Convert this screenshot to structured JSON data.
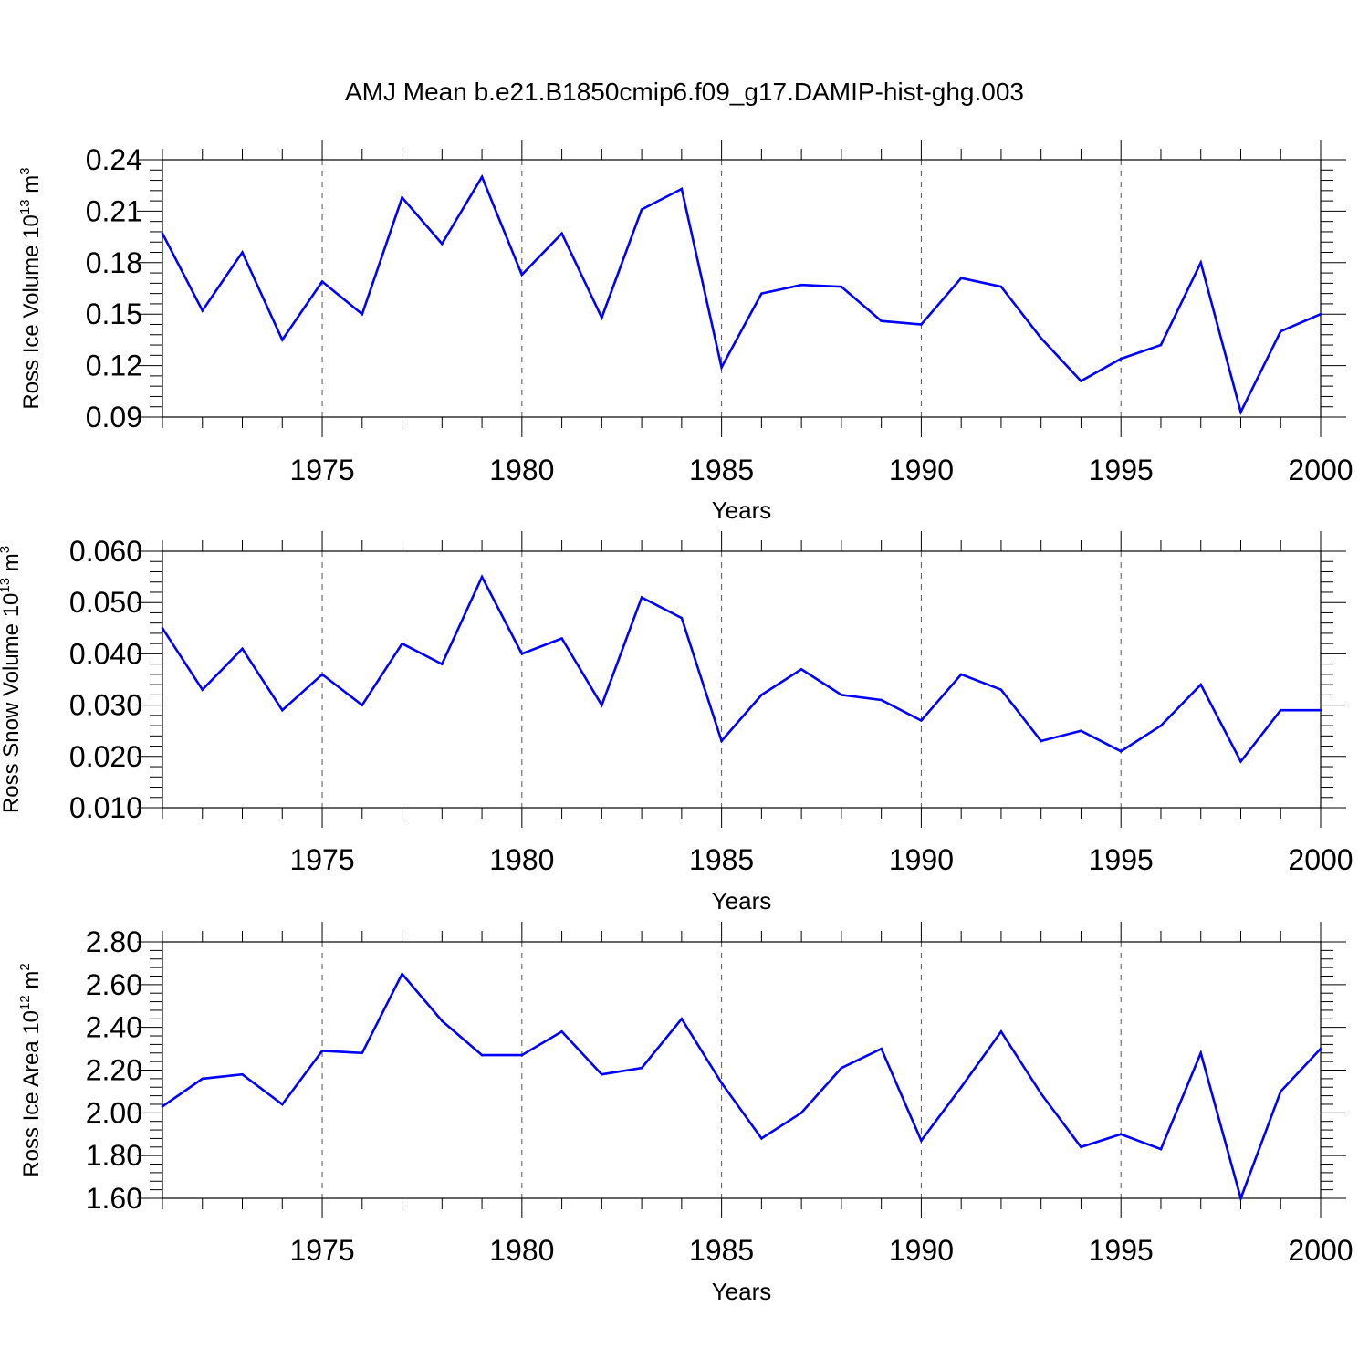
{
  "colors": {
    "series": "#0000ff",
    "axes": "#000000",
    "grid": "#555555"
  },
  "chart_data": [
    {
      "type": "line",
      "title": "AMJ Mean b.e21.B1850cmip6.f09_g17.DAMIP-hist-ghg.003",
      "xlabel": "Years",
      "ylabel": {
        "text": "Ross Ice Volume 10",
        "sup": "13",
        "unit": " m",
        "unit_sup": "3"
      },
      "xlim": [
        1971,
        2000
      ],
      "ylim": [
        0.09,
        0.24
      ],
      "yticks": [
        "0.09",
        "0.12",
        "0.15",
        "0.18",
        "0.21",
        "0.24"
      ],
      "xticks": [
        "1975",
        "1980",
        "1985",
        "1990",
        "1995",
        "2000"
      ],
      "grid": "vertical dashed at major x ticks",
      "x": [
        1971,
        1972,
        1973,
        1974,
        1975,
        1976,
        1977,
        1978,
        1979,
        1980,
        1981,
        1982,
        1983,
        1984,
        1985,
        1986,
        1987,
        1988,
        1989,
        1990,
        1991,
        1992,
        1993,
        1994,
        1995,
        1996,
        1997,
        1998,
        1999,
        2000
      ],
      "values": [
        0.197,
        0.152,
        0.186,
        0.135,
        0.169,
        0.15,
        0.218,
        0.191,
        0.23,
        0.173,
        0.197,
        0.148,
        0.211,
        0.223,
        0.119,
        0.162,
        0.167,
        0.166,
        0.146,
        0.144,
        0.171,
        0.166,
        0.136,
        0.111,
        0.124,
        0.132,
        0.18,
        0.093,
        0.14,
        0.15
      ]
    },
    {
      "type": "line",
      "xlabel": "Years",
      "ylabel": {
        "text": "Ross Snow Volume 10",
        "sup": "13",
        "unit": " m",
        "unit_sup": "3"
      },
      "xlim": [
        1971,
        2000
      ],
      "ylim": [
        0.01,
        0.06
      ],
      "yticks": [
        "0.010",
        "0.020",
        "0.030",
        "0.040",
        "0.050",
        "0.060"
      ],
      "xticks": [
        "1975",
        "1980",
        "1985",
        "1990",
        "1995",
        "2000"
      ],
      "grid": "vertical dashed at major x ticks",
      "x": [
        1971,
        1972,
        1973,
        1974,
        1975,
        1976,
        1977,
        1978,
        1979,
        1980,
        1981,
        1982,
        1983,
        1984,
        1985,
        1986,
        1987,
        1988,
        1989,
        1990,
        1991,
        1992,
        1993,
        1994,
        1995,
        1996,
        1997,
        1998,
        1999,
        2000
      ],
      "values": [
        0.045,
        0.033,
        0.041,
        0.029,
        0.036,
        0.03,
        0.042,
        0.038,
        0.055,
        0.04,
        0.043,
        0.03,
        0.051,
        0.047,
        0.023,
        0.032,
        0.037,
        0.032,
        0.031,
        0.027,
        0.036,
        0.033,
        0.023,
        0.025,
        0.021,
        0.026,
        0.034,
        0.019,
        0.029,
        0.029
      ]
    },
    {
      "type": "line",
      "xlabel": "Years",
      "ylabel": {
        "text": "Ross Ice Area 10",
        "sup": "12",
        "unit": " m",
        "unit_sup": "2"
      },
      "xlim": [
        1971,
        2000
      ],
      "ylim": [
        1.6,
        2.8
      ],
      "yticks": [
        "1.60",
        "1.80",
        "2.00",
        "2.20",
        "2.40",
        "2.60",
        "2.80"
      ],
      "xticks": [
        "1975",
        "1980",
        "1985",
        "1990",
        "1995",
        "2000"
      ],
      "grid": "vertical dashed at major x ticks",
      "x": [
        1971,
        1972,
        1973,
        1974,
        1975,
        1976,
        1977,
        1978,
        1979,
        1980,
        1981,
        1982,
        1983,
        1984,
        1985,
        1986,
        1987,
        1988,
        1989,
        1990,
        1991,
        1992,
        1993,
        1994,
        1995,
        1996,
        1997,
        1998,
        1999,
        2000
      ],
      "values": [
        2.03,
        2.16,
        2.18,
        2.04,
        2.29,
        2.28,
        2.65,
        2.43,
        2.27,
        2.27,
        2.38,
        2.18,
        2.21,
        2.44,
        2.14,
        1.88,
        2.0,
        2.21,
        2.3,
        1.87,
        2.12,
        2.38,
        2.09,
        1.84,
        1.9,
        1.83,
        2.28,
        1.6,
        2.1,
        2.3
      ]
    }
  ]
}
